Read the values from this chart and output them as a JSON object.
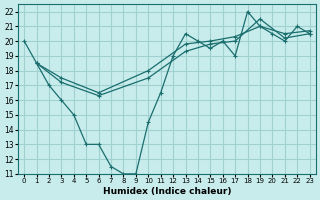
{
  "xlabel": "Humidex (Indice chaleur)",
  "ylabel": "",
  "bg_color": "#c8ecec",
  "grid_color": "#a0d0d0",
  "line_color": "#1a6e6e",
  "xlim": [
    -0.5,
    23.5
  ],
  "ylim": [
    11,
    22.5
  ],
  "xticks": [
    0,
    1,
    2,
    3,
    4,
    5,
    6,
    7,
    8,
    9,
    10,
    11,
    12,
    13,
    14,
    15,
    16,
    17,
    18,
    19,
    20,
    21,
    22,
    23
  ],
  "yticks": [
    11,
    12,
    13,
    14,
    15,
    16,
    17,
    18,
    19,
    20,
    21,
    22
  ],
  "line1_x": [
    0,
    1,
    2,
    3,
    4,
    5,
    6,
    7,
    8,
    9,
    10,
    11,
    12,
    13,
    14,
    15,
    16,
    17,
    18,
    19,
    20,
    21,
    22,
    23
  ],
  "line1_y": [
    20,
    18.5,
    17,
    16,
    15,
    13,
    13,
    11.5,
    11,
    11,
    14.5,
    16.5,
    19,
    20.5,
    20,
    19.5,
    20,
    19,
    22,
    21,
    20.5,
    20,
    21,
    20.5
  ],
  "line2_x": [
    1,
    3,
    6,
    10,
    13,
    15,
    17,
    19,
    21,
    23
  ],
  "line2_y": [
    18.5,
    17.5,
    16.5,
    18.0,
    19.8,
    20.0,
    20.3,
    21.0,
    20.5,
    20.7
  ],
  "line3_x": [
    1,
    3,
    6,
    10,
    13,
    15,
    17,
    19,
    21,
    23
  ],
  "line3_y": [
    18.5,
    17.2,
    16.3,
    17.5,
    19.3,
    19.8,
    20.0,
    21.5,
    20.2,
    20.5
  ]
}
